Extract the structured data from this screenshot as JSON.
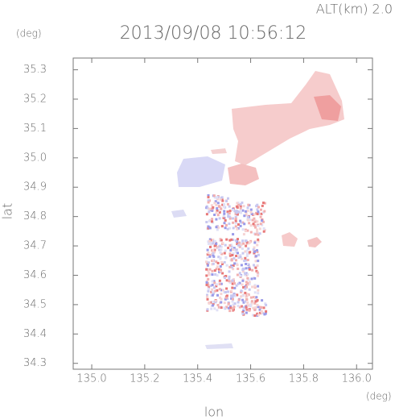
{
  "chart_data": {
    "type": "map",
    "title": "2013/09/08 10:56:12",
    "annotation": "ALT(km) 2.0",
    "xlabel": "lon",
    "ylabel": "lat",
    "xunit": "(deg)",
    "yunit": "(deg)",
    "xlim": [
      134.93,
      136.06
    ],
    "ylim": [
      34.28,
      35.34
    ],
    "xticks": [
      {
        "value": 135,
        "label": "135.0"
      },
      135.2,
      135.4,
      135.6,
      135.8,
      {
        "value": 136,
        "label": "136.0"
      }
    ],
    "yticks": [
      34.3,
      34.4,
      34.5,
      34.6,
      34.7,
      34.8,
      34.9,
      {
        "value": 35,
        "label": "35.0"
      },
      35.1,
      35.2,
      35.3
    ]
  }
}
